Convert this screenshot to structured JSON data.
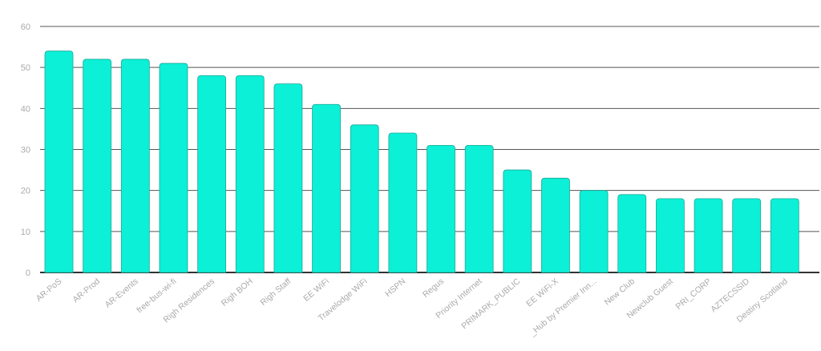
{
  "chart_data": {
    "type": "bar",
    "title": "",
    "xlabel": "",
    "ylabel": "",
    "ylim": [
      0,
      60
    ],
    "yticks": [
      0,
      10,
      20,
      30,
      40,
      50,
      60
    ],
    "grid": true,
    "bar_color": "#0bf0d6",
    "bar_outline_color": "#1fa896",
    "grid_color": "#555555",
    "tick_color": "#aaaaaa",
    "categories": [
      "AR-PoS",
      "AR-Prod",
      "AR-Events",
      "free-bus-wi-fi",
      "Righ Residences",
      "Righ BOH",
      "Righ Staff",
      "EE WiFi",
      "Travelodge WiFi",
      "HSPN",
      "Regus",
      "Priority Internet",
      "PRIMARK_PUBLIC",
      "EE WiFi-X",
      "_Hub by Premier Inn...",
      "New Club",
      "Newclub Guest",
      "PRI_CORP",
      "AZTECSSID",
      "Destiny Scotland"
    ],
    "values": [
      54,
      52,
      52,
      51,
      48,
      48,
      46,
      41,
      36,
      34,
      31,
      31,
      25,
      23,
      20,
      19,
      18,
      18,
      18,
      18
    ]
  }
}
